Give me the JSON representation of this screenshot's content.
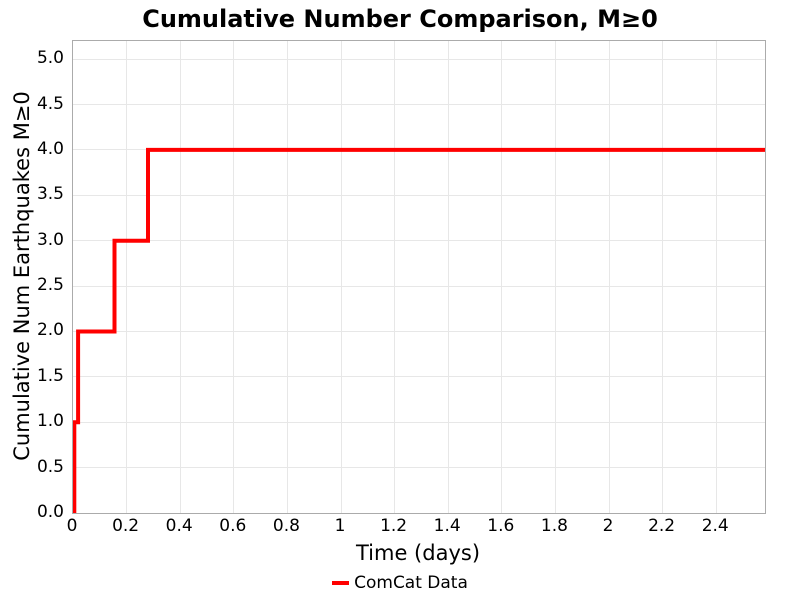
{
  "chart_data": {
    "type": "line",
    "style": "step-post",
    "title": "Cumulative Number Comparison, M≥0",
    "xlabel": "Time (days)",
    "ylabel": "Cumulative Num Earthquakes M≥0",
    "xlim": [
      0,
      2.582
    ],
    "ylim": [
      0,
      5.2
    ],
    "xticks": [
      0,
      0.2,
      0.4,
      0.6,
      0.8,
      1,
      1.2,
      1.4,
      1.6,
      1.8,
      2,
      2.2,
      2.4
    ],
    "xtick_labels": [
      "0",
      "0.2",
      "0.4",
      "0.6",
      "0.8",
      "1",
      "1.2",
      "1.4",
      "1.6",
      "1.8",
      "2",
      "2.2",
      "2.4"
    ],
    "yticks": [
      0,
      0.5,
      1,
      1.5,
      2,
      2.5,
      3,
      3.5,
      4,
      4.5,
      5
    ],
    "ytick_labels": [
      "0.0",
      "0.5",
      "1.0",
      "1.5",
      "2.0",
      "2.5",
      "3.0",
      "3.5",
      "4.0",
      "4.5",
      "5.0"
    ],
    "grid": true,
    "grid_color": "#e7e7e7",
    "spine_color": "#ababab",
    "background_color": "#ffffff",
    "text_color": "#000000",
    "legend": {
      "position": "bottom-center",
      "entries": [
        {
          "label": "ComCat Data",
          "color": "#ff0000"
        }
      ]
    },
    "series": [
      {
        "name": "ComCat Data",
        "color": "#ff0000",
        "line_width": 4,
        "event_times_days": [
          0.005,
          0.019,
          0.155,
          0.28
        ],
        "cumulative_counts": [
          1,
          2,
          3,
          4
        ],
        "final_count": 4,
        "x_end": 2.582,
        "step_points": [
          [
            0.005,
            0
          ],
          [
            0.005,
            1
          ],
          [
            0.019,
            1
          ],
          [
            0.019,
            2
          ],
          [
            0.155,
            2
          ],
          [
            0.155,
            3
          ],
          [
            0.28,
            3
          ],
          [
            0.28,
            4
          ],
          [
            2.582,
            4
          ]
        ]
      }
    ]
  }
}
